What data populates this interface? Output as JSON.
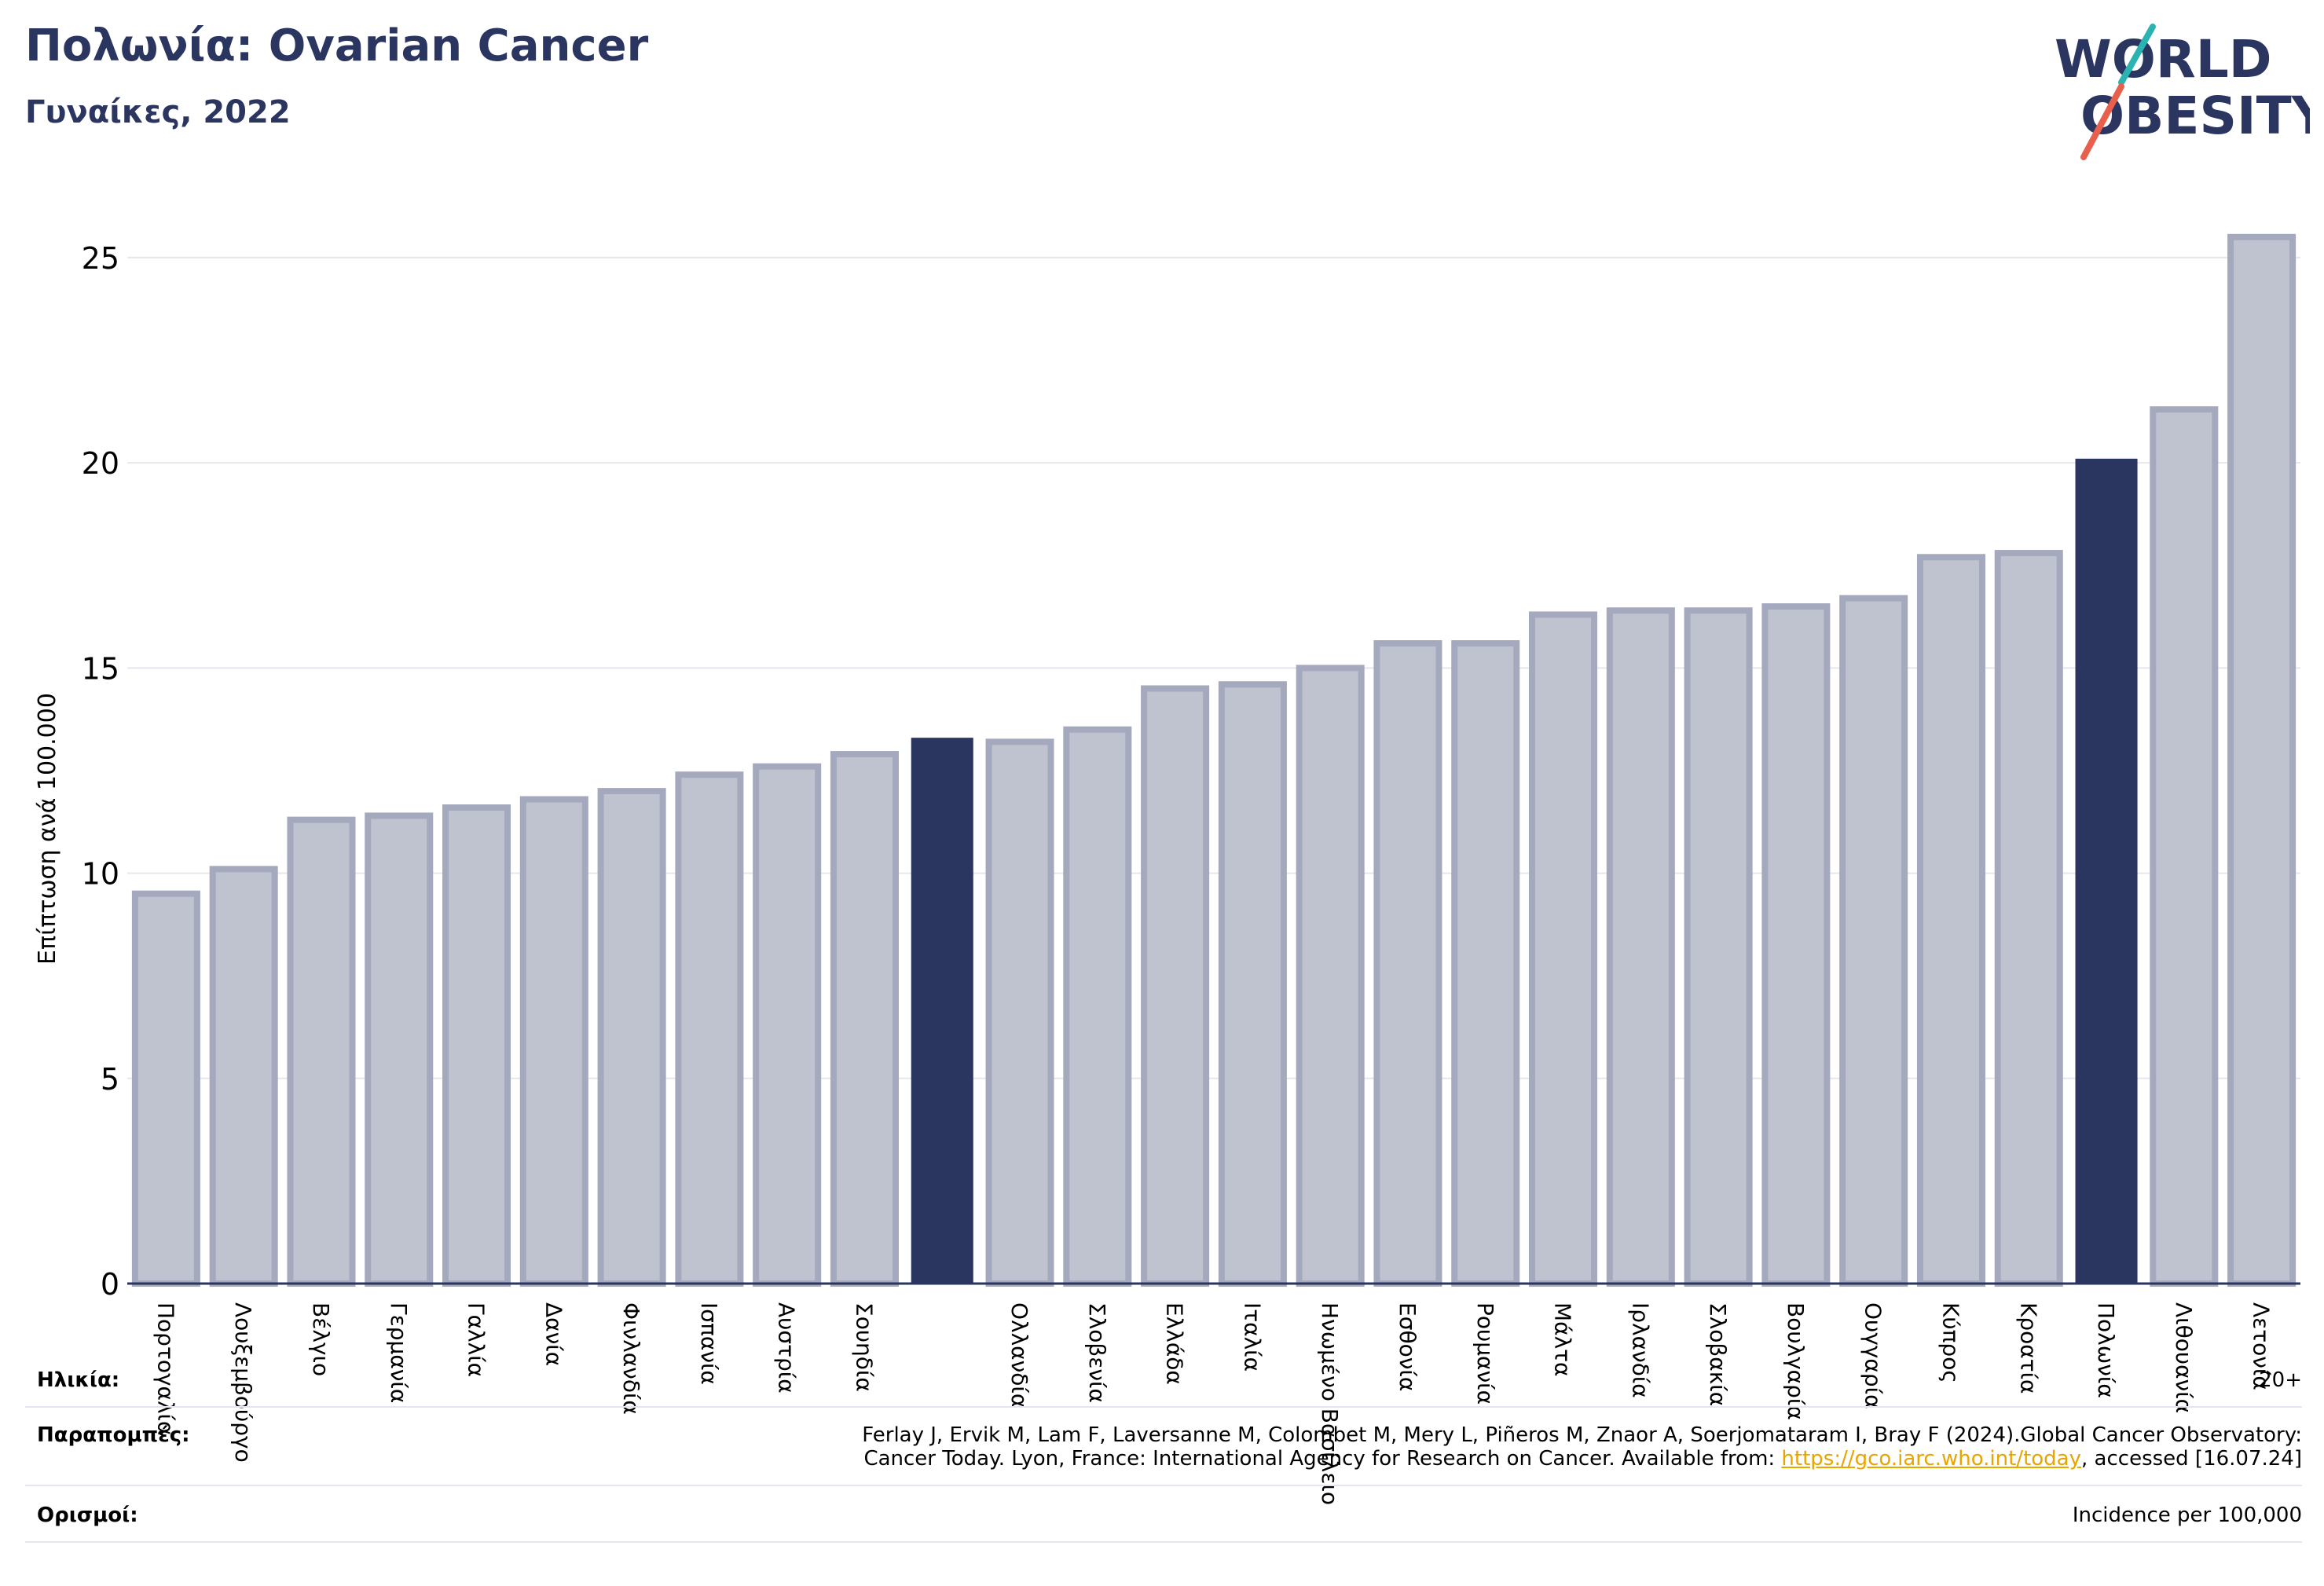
{
  "header": {
    "title": "Πολωνία: Ovarian Cancer",
    "subtitle": "Γυναίκες, 2022"
  },
  "logo": {
    "line1": "WORLD",
    "line2": "OBESITY",
    "slash_colors": [
      "#2bb3b1",
      "#e8604c"
    ],
    "text_color": "#2a3560"
  },
  "chart_data": {
    "type": "bar",
    "title": "Πολωνία: Ovarian Cancer",
    "subtitle": "Γυναίκες, 2022",
    "ylabel": "Επίπτωση ανά 100.000",
    "xlabel": "",
    "ylim": [
      0,
      26.3
    ],
    "yticks": [
      0,
      5,
      10,
      15,
      20,
      25
    ],
    "grid": true,
    "categories": [
      "Πορτογαλία",
      "Λουξεμβούργο",
      "Βέλγιο",
      "Γερμανία",
      "Γαλλία",
      "Δανία",
      "Φινλανδία",
      "Ισπανία",
      "Αυστρία",
      "Σουηδία",
      "",
      "Ολλανδία",
      "Σλοβενία",
      "Ελλάδα",
      "Ιταλία",
      "Ηνωμένο Βασίλειο",
      "Εσθονία",
      "Ρουμανία",
      "Μάλτα",
      "Ιρλανδία",
      "Σλοβακία",
      "Βουλγαρία",
      "Ουγγαρία",
      "Κύπρος",
      "Κροατία",
      "Πολωνία",
      "Λιθουανία",
      "Λετονία"
    ],
    "values": [
      9.5,
      10.1,
      11.3,
      11.4,
      11.6,
      11.8,
      12.0,
      12.4,
      12.6,
      12.9,
      13.3,
      13.2,
      13.5,
      14.5,
      14.6,
      15.0,
      15.6,
      15.6,
      16.3,
      16.4,
      16.4,
      16.5,
      16.7,
      17.7,
      17.8,
      20.1,
      21.3,
      25.5
    ],
    "highlighted": [
      10,
      25
    ],
    "colors": {
      "bar_fill": "#bfc2cf",
      "bar_stroke": "#a4a9bd",
      "highlight": "#2a3560",
      "grid": "#e5e7ee",
      "axis": "#2a3560"
    }
  },
  "footer": {
    "age_label": "Ηλικία:",
    "age_value": "20+",
    "references_label": "Παραπομπές:",
    "references_line1": "Ferlay J, Ervik M, Lam F, Laversanne M, Colombet M, Mery L, Piñeros M, Znaor A, Soerjomataram I, Bray F (2024).Global Cancer Observatory:",
    "references_line2_pre": "Cancer Today. Lyon, France: International Agency for Research on Cancer. Available from: ",
    "references_link": "https://gco.iarc.who.int/today",
    "references_line2_post": ", accessed [16.07.24]",
    "definitions_label": "Ορισμοί:",
    "definitions_value": "Incidence per 100,000"
  }
}
